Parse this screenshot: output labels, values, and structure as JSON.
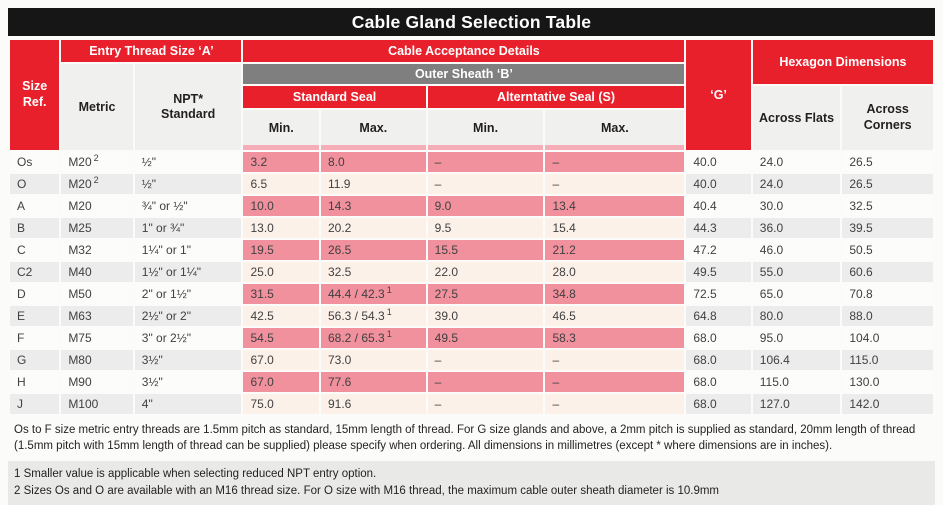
{
  "title": "Cable Gland Selection Table",
  "colors": {
    "brand_red": "#e8202c",
    "bar_gray": "#7f7f7f",
    "seal_dark_pink": "#f0919d",
    "seal_light_pink": "#fcf1e8",
    "title_black": "#161616"
  },
  "header": {
    "size_ref": "Size Ref.",
    "entry_thread": "Entry Thread Size ‘A’",
    "metric": "Metric",
    "npt_standard": "NPT* Standard",
    "cable_acceptance": "Cable Acceptance Details",
    "outer_sheath": "Outer Sheath ‘B’",
    "standard_seal": "Standard Seal",
    "alternative_seal": "Alterntative Seal (S)",
    "min": "Min.",
    "max": "Max.",
    "g": "‘G’",
    "hexagon": "Hexagon Dimensions",
    "across_flats": "Across Flats",
    "across_corners": "Across Corners"
  },
  "rows": [
    {
      "size": "Os",
      "metric": "M20",
      "metric_sup": "2",
      "npt": "½\"",
      "std_min": "3.2",
      "std_max": "8.0",
      "alt_min": "–",
      "alt_max": "–",
      "g": "40.0",
      "flats": "24.0",
      "corners": "26.5"
    },
    {
      "size": "O",
      "metric": "M20",
      "metric_sup": "2",
      "npt": "½\"",
      "std_min": "6.5",
      "std_max": "11.9",
      "alt_min": "–",
      "alt_max": "–",
      "g": "40.0",
      "flats": "24.0",
      "corners": "26.5"
    },
    {
      "size": "A",
      "metric": "M20",
      "npt": "¾\" or ½\"",
      "std_min": "10.0",
      "std_max": "14.3",
      "alt_min": "9.0",
      "alt_max": "13.4",
      "g": "40.4",
      "flats": "30.0",
      "corners": "32.5"
    },
    {
      "size": "B",
      "metric": "M25",
      "npt": "1\" or ¾\"",
      "std_min": "13.0",
      "std_max": "20.2",
      "alt_min": "9.5",
      "alt_max": "15.4",
      "g": "44.3",
      "flats": "36.0",
      "corners": "39.5"
    },
    {
      "size": "C",
      "metric": "M32",
      "npt": "1¼\" or 1\"",
      "std_min": "19.5",
      "std_max": "26.5",
      "alt_min": "15.5",
      "alt_max": "21.2",
      "g": "47.2",
      "flats": "46.0",
      "corners": "50.5"
    },
    {
      "size": "C2",
      "metric": "M40",
      "npt": "1½\" or 1¼\"",
      "std_min": "25.0",
      "std_max": "32.5",
      "alt_min": "22.0",
      "alt_max": "28.0",
      "g": "49.5",
      "flats": "55.0",
      "corners": "60.6"
    },
    {
      "size": "D",
      "metric": "M50",
      "npt": "2\" or 1½\"",
      "std_min": "31.5",
      "std_max": "44.4 / 42.3",
      "std_max_sup": "1",
      "alt_min": "27.5",
      "alt_max": "34.8",
      "g": "72.5",
      "flats": "65.0",
      "corners": "70.8"
    },
    {
      "size": "E",
      "metric": "M63",
      "npt": "2½\" or 2\"",
      "std_min": "42.5",
      "std_max": "56.3 / 54.3",
      "std_max_sup": "1",
      "alt_min": "39.0",
      "alt_max": "46.5",
      "g": "64.8",
      "flats": "80.0",
      "corners": "88.0"
    },
    {
      "size": "F",
      "metric": "M75",
      "npt": "3\" or 2½\"",
      "std_min": "54.5",
      "std_max": "68.2 / 65.3",
      "std_max_sup": "1",
      "alt_min": "49.5",
      "alt_max": "58.3",
      "g": "68.0",
      "flats": "95.0",
      "corners": "104.0"
    },
    {
      "size": "G",
      "metric": "M80",
      "npt": "3½\"",
      "std_min": "67.0",
      "std_max": "73.0",
      "alt_min": "–",
      "alt_max": "–",
      "g": "68.0",
      "flats": "106.4",
      "corners": "115.0"
    },
    {
      "size": "H",
      "metric": "M90",
      "npt": "3½\"",
      "std_min": "67.0",
      "std_max": "77.6",
      "alt_min": "–",
      "alt_max": "–",
      "g": "68.0",
      "flats": "115.0",
      "corners": "130.0"
    },
    {
      "size": "J",
      "metric": "M100",
      "npt": "4\"",
      "std_min": "75.0",
      "std_max": "91.6",
      "alt_min": "–",
      "alt_max": "–",
      "g": "68.0",
      "flats": "127.0",
      "corners": "142.0"
    }
  ],
  "notes": {
    "main": "Os to F size metric entry threads are 1.5mm pitch as standard, 15mm length of thread. For G size glands and above, a 2mm pitch is supplied as standard, 20mm length of thread (1.5mm pitch with 15mm length of thread can be supplied) please specify when ordering. All dimensions in millimetres (except * where dimensions are in inches).",
    "note1": "1 Smaller value is applicable when selecting reduced NPT entry option.",
    "note2": "2 Sizes Os and O are available with an M16 thread size. For O size with M16 thread, the maximum cable outer sheath diameter is 10.9mm"
  }
}
